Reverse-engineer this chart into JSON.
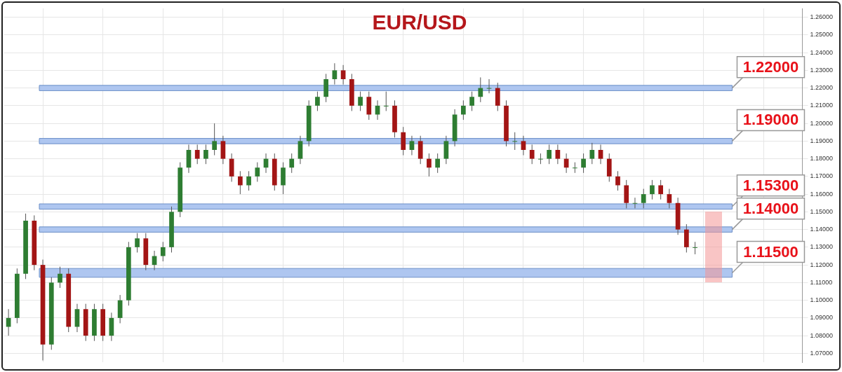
{
  "chart_data": {
    "type": "candlestick",
    "title": "EUR/USD",
    "categories": [
      null,
      null,
      null,
      null,
      null,
      null,
      null,
      null,
      null,
      null,
      null,
      null,
      null,
      null,
      null,
      null,
      null,
      null,
      null,
      null,
      null,
      null,
      null,
      null,
      null,
      null,
      null,
      null,
      null,
      null,
      null,
      null,
      null,
      null,
      null,
      null,
      null,
      null,
      null,
      null,
      null,
      null,
      null,
      null,
      null,
      null,
      null,
      null,
      null,
      null,
      null,
      null,
      null,
      null,
      null,
      null,
      null,
      null,
      null,
      null,
      null,
      null,
      null,
      null,
      null,
      null,
      null,
      null,
      null,
      null,
      null,
      null,
      null,
      null,
      null,
      null,
      null,
      null,
      null,
      null,
      null,
      null,
      null,
      null,
      null,
      null,
      null,
      null,
      null,
      null,
      null,
      null,
      null
    ],
    "ohlc": [
      [
        1.085,
        1.095,
        1.08,
        1.09
      ],
      [
        1.09,
        1.118,
        1.087,
        1.115
      ],
      [
        1.115,
        1.149,
        1.112,
        1.145
      ],
      [
        1.145,
        1.148,
        1.117,
        1.12
      ],
      [
        1.12,
        1.123,
        1.066,
        1.075
      ],
      [
        1.075,
        1.113,
        1.072,
        1.11
      ],
      [
        1.11,
        1.119,
        1.107,
        1.115
      ],
      [
        1.115,
        1.118,
        1.082,
        1.085
      ],
      [
        1.085,
        1.098,
        1.082,
        1.095
      ],
      [
        1.095,
        1.098,
        1.077,
        1.08
      ],
      [
        1.08,
        1.098,
        1.077,
        1.095
      ],
      [
        1.095,
        1.098,
        1.077,
        1.08
      ],
      [
        1.08,
        1.093,
        1.077,
        1.09
      ],
      [
        1.09,
        1.103,
        1.087,
        1.1
      ],
      [
        1.1,
        1.133,
        1.097,
        1.13
      ],
      [
        1.13,
        1.138,
        1.127,
        1.135
      ],
      [
        1.135,
        1.138,
        1.117,
        1.12
      ],
      [
        1.12,
        1.128,
        1.117,
        1.125
      ],
      [
        1.125,
        1.133,
        1.122,
        1.13
      ],
      [
        1.13,
        1.153,
        1.127,
        1.15
      ],
      [
        1.15,
        1.178,
        1.147,
        1.175
      ],
      [
        1.175,
        1.188,
        1.172,
        1.185
      ],
      [
        1.185,
        1.188,
        1.177,
        1.18
      ],
      [
        1.18,
        1.188,
        1.177,
        1.185
      ],
      [
        1.185,
        1.2,
        1.182,
        1.19
      ],
      [
        1.19,
        1.193,
        1.177,
        1.18
      ],
      [
        1.18,
        1.183,
        1.167,
        1.17
      ],
      [
        1.17,
        1.173,
        1.16,
        1.165
      ],
      [
        1.165,
        1.173,
        1.162,
        1.17
      ],
      [
        1.17,
        1.178,
        1.167,
        1.175
      ],
      [
        1.175,
        1.183,
        1.172,
        1.18
      ],
      [
        1.18,
        1.183,
        1.162,
        1.165
      ],
      [
        1.165,
        1.178,
        1.16,
        1.175
      ],
      [
        1.175,
        1.183,
        1.172,
        1.18
      ],
      [
        1.18,
        1.193,
        1.177,
        1.19
      ],
      [
        1.19,
        1.213,
        1.187,
        1.21
      ],
      [
        1.21,
        1.218,
        1.207,
        1.215
      ],
      [
        1.215,
        1.228,
        1.212,
        1.225
      ],
      [
        1.225,
        1.234,
        1.222,
        1.23
      ],
      [
        1.23,
        1.233,
        1.222,
        1.225
      ],
      [
        1.225,
        1.228,
        1.207,
        1.21
      ],
      [
        1.21,
        1.218,
        1.207,
        1.215
      ],
      [
        1.215,
        1.218,
        1.202,
        1.205
      ],
      [
        1.205,
        1.213,
        1.202,
        1.21
      ],
      [
        1.21,
        1.218,
        1.207,
        1.21
      ],
      [
        1.21,
        1.213,
        1.192,
        1.195
      ],
      [
        1.195,
        1.198,
        1.182,
        1.185
      ],
      [
        1.185,
        1.193,
        1.182,
        1.19
      ],
      [
        1.19,
        1.193,
        1.177,
        1.18
      ],
      [
        1.18,
        1.183,
        1.17,
        1.175
      ],
      [
        1.175,
        1.183,
        1.172,
        1.18
      ],
      [
        1.18,
        1.193,
        1.177,
        1.19
      ],
      [
        1.19,
        1.208,
        1.187,
        1.205
      ],
      [
        1.205,
        1.213,
        1.202,
        1.21
      ],
      [
        1.21,
        1.218,
        1.207,
        1.215
      ],
      [
        1.215,
        1.226,
        1.212,
        1.22
      ],
      [
        1.22,
        1.225,
        1.217,
        1.22
      ],
      [
        1.22,
        1.223,
        1.207,
        1.21
      ],
      [
        1.21,
        1.213,
        1.187,
        1.19
      ],
      [
        1.19,
        1.195,
        1.185,
        1.19
      ],
      [
        1.19,
        1.193,
        1.182,
        1.185
      ],
      [
        1.185,
        1.188,
        1.177,
        1.18
      ],
      [
        1.18,
        1.183,
        1.177,
        1.18
      ],
      [
        1.18,
        1.188,
        1.177,
        1.185
      ],
      [
        1.185,
        1.188,
        1.177,
        1.18
      ],
      [
        1.18,
        1.183,
        1.172,
        1.175
      ],
      [
        1.175,
        1.178,
        1.172,
        1.175
      ],
      [
        1.175,
        1.183,
        1.172,
        1.18
      ],
      [
        1.18,
        1.189,
        1.177,
        1.185
      ],
      [
        1.185,
        1.188,
        1.177,
        1.18
      ],
      [
        1.18,
        1.183,
        1.167,
        1.17
      ],
      [
        1.17,
        1.173,
        1.162,
        1.165
      ],
      [
        1.165,
        1.168,
        1.152,
        1.155
      ],
      [
        1.155,
        1.158,
        1.152,
        1.155
      ],
      [
        1.155,
        1.163,
        1.152,
        1.16
      ],
      [
        1.16,
        1.168,
        1.157,
        1.165
      ],
      [
        1.165,
        1.168,
        1.157,
        1.16
      ],
      [
        1.16,
        1.163,
        1.152,
        1.155
      ],
      [
        1.155,
        1.158,
        1.137,
        1.14
      ],
      [
        1.14,
        1.143,
        1.127,
        1.13
      ],
      [
        1.13,
        1.133,
        1.126,
        1.13
      ],
      null,
      null,
      null,
      null,
      null,
      null,
      null,
      null,
      null,
      null,
      null,
      null
    ],
    "ylim": [
      1.065,
      1.265
    ],
    "yticks": [
      {
        "value": 1.07,
        "label": "1.07000"
      },
      {
        "value": 1.08,
        "label": "1.08000"
      },
      {
        "value": 1.09,
        "label": "1.09000"
      },
      {
        "value": 1.1,
        "label": "1.10000"
      },
      {
        "value": 1.11,
        "label": "1.11000"
      },
      {
        "value": 1.12,
        "label": "1.12000"
      },
      {
        "value": 1.13,
        "label": "1.13000"
      },
      {
        "value": 1.14,
        "label": "1.14000"
      },
      {
        "value": 1.15,
        "label": "1.15000"
      },
      {
        "value": 1.16,
        "label": "1.16000"
      },
      {
        "value": 1.17,
        "label": "1.17000"
      },
      {
        "value": 1.18,
        "label": "1.18000"
      },
      {
        "value": 1.19,
        "label": "1.19000"
      },
      {
        "value": 1.2,
        "label": "1.20000"
      },
      {
        "value": 1.21,
        "label": "1.21000"
      },
      {
        "value": 1.22,
        "label": "1.22000"
      },
      {
        "value": 1.23,
        "label": "1.23000"
      },
      {
        "value": 1.24,
        "label": "1.24000"
      },
      {
        "value": 1.25,
        "label": "1.25000"
      },
      {
        "value": 1.26,
        "label": "1.26000"
      }
    ],
    "bands": [
      {
        "axis": "y",
        "from": 1.2185,
        "to": 1.2215,
        "label": "1.22000",
        "color": "#aec6f0"
      },
      {
        "axis": "y",
        "from": 1.1885,
        "to": 1.1915,
        "label": "1.19000",
        "color": "#aec6f0"
      },
      {
        "axis": "y",
        "from": 1.1515,
        "to": 1.1545,
        "label": "1.15300",
        "color": "#aec6f0"
      },
      {
        "axis": "y",
        "from": 1.1385,
        "to": 1.1415,
        "label": "1.14000",
        "color": "#aec6f0"
      },
      {
        "axis": "y",
        "from": 1.113,
        "to": 1.118,
        "label": "1.11500",
        "color": "#aec6f0"
      }
    ],
    "grid": true
  }
}
